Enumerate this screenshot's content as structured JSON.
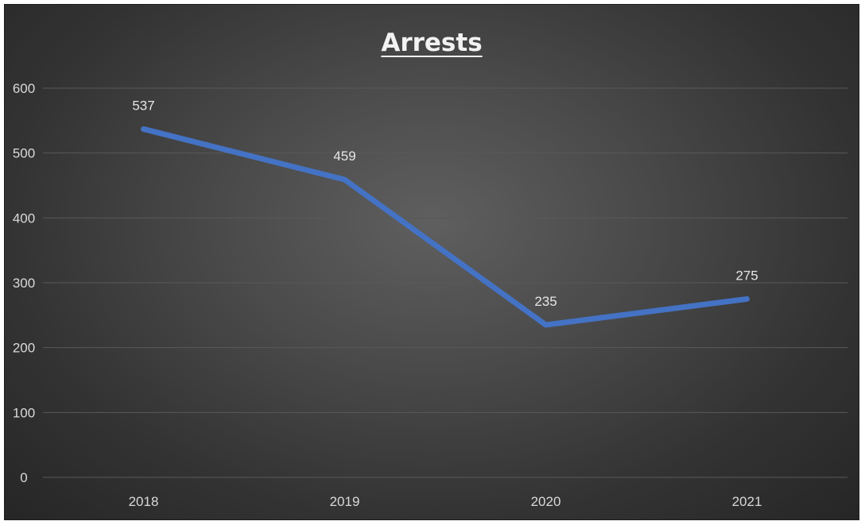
{
  "chart_data": {
    "type": "line",
    "title": "Arrests",
    "categories": [
      "2018",
      "2019",
      "2020",
      "2021"
    ],
    "series": [
      {
        "values": [
          537,
          459,
          235,
          275
        ]
      }
    ],
    "data_labels": [
      "537",
      "459",
      "235",
      "275"
    ],
    "y_ticks": [
      "0",
      "100",
      "200",
      "300",
      "400",
      "500",
      "600"
    ],
    "ylim": [
      0,
      600
    ],
    "grid": true,
    "legend": "none",
    "colors": {
      "line": "#4472c4",
      "background": "#3d3d3d",
      "gridline": "#595959",
      "text": "#d9d9d9"
    }
  }
}
